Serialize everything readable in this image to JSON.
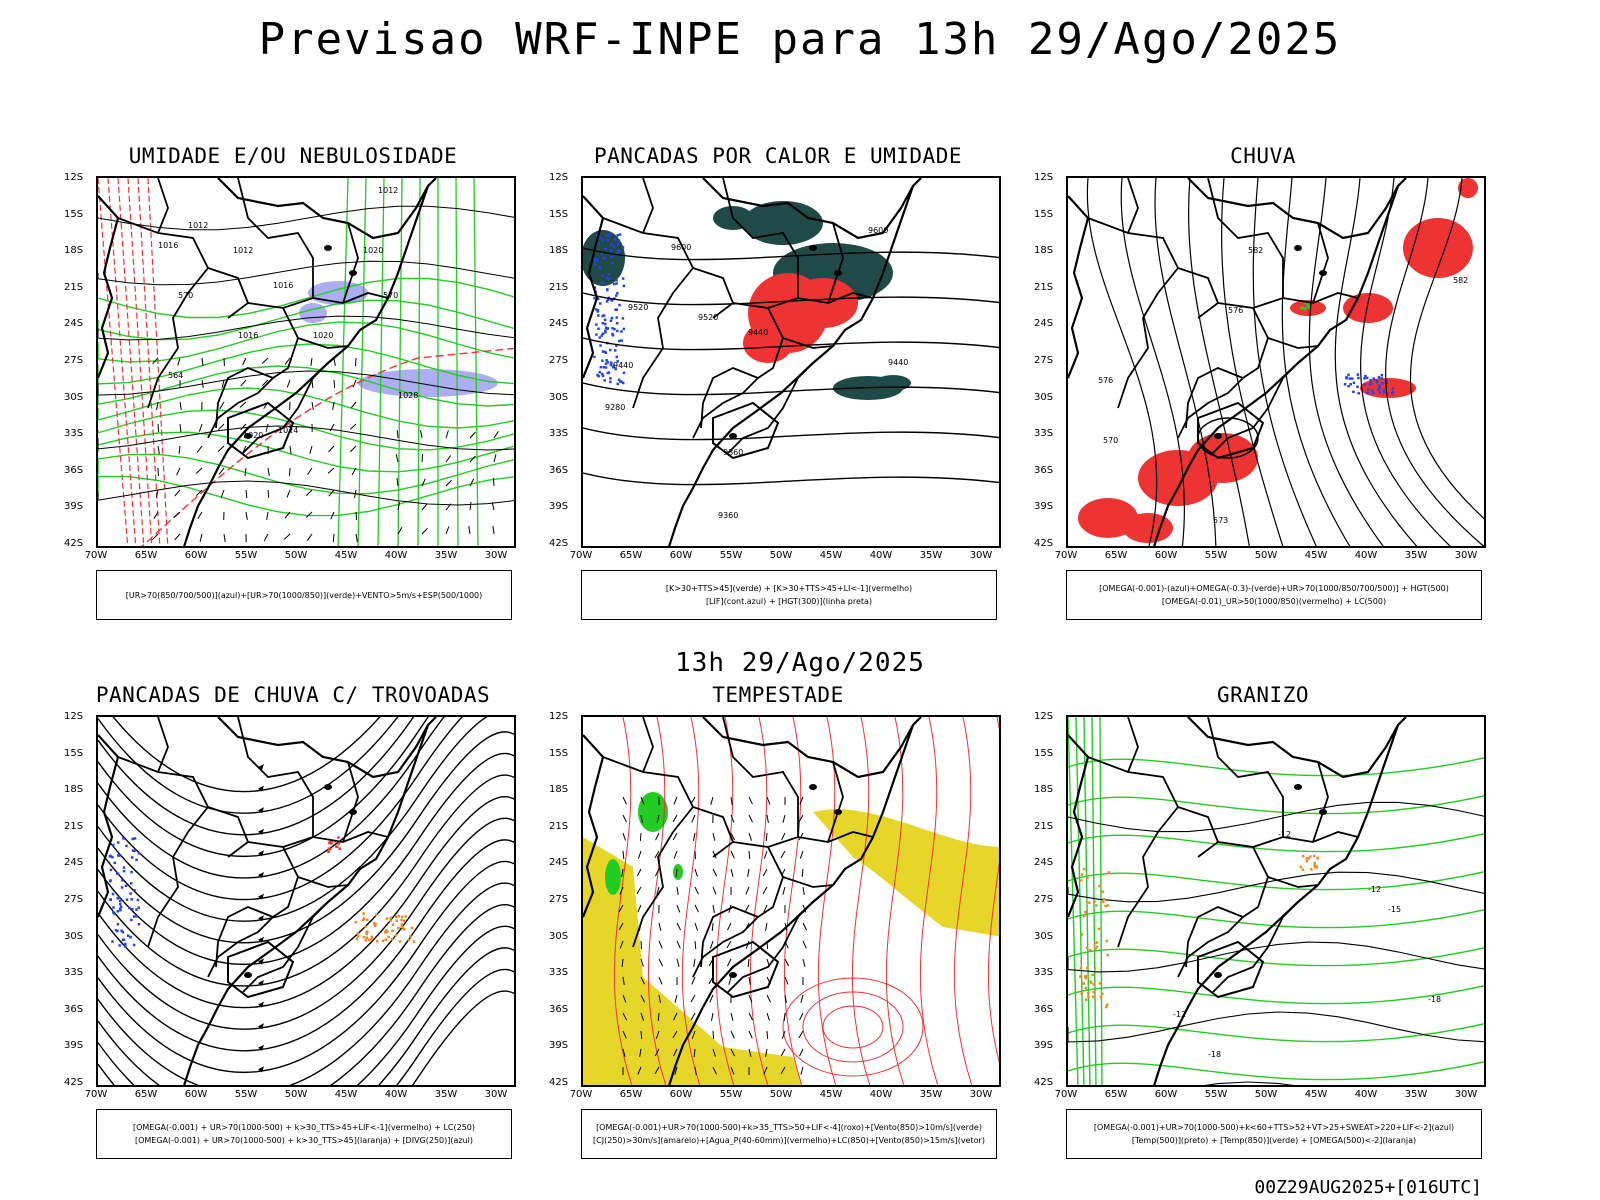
{
  "header": {
    "title": "Previsao WRF-INPE  para 13h 29/Ago/2025"
  },
  "middle": {
    "title": "13h 29/Ago/2025"
  },
  "footer": {
    "stamp": "00Z29AUG2025+[016UTC]"
  },
  "axes": {
    "lat_labels": [
      "12S",
      "15S",
      "18S",
      "21S",
      "24S",
      "27S",
      "30S",
      "33S",
      "36S",
      "39S",
      "42S"
    ],
    "lon_labels": [
      "70W",
      "65W",
      "60W",
      "55W",
      "50W",
      "45W",
      "40W",
      "35W",
      "30W"
    ]
  },
  "colors": {
    "green": "#22cc22",
    "red": "#ee3333",
    "blue": "#2244ee",
    "lavender": "#9999ee",
    "darkteal": "#1f4a47",
    "yellow": "#e6d62a",
    "orange": "#ee8822",
    "black": "#000000"
  },
  "panels": [
    {
      "title": "UMIDADE E/OU NEBULOSIDADE",
      "caption": [
        "[UR>70(850/700/500)](azul)+[UR>70(1000/850)](verde)+VENTO>5m/s+ESP(500/1000)"
      ],
      "contour_labels": [
        "1016",
        "1012",
        "1012",
        "1012",
        "1016",
        "1020",
        "1020",
        "1016",
        "1024",
        "1020",
        "1028",
        "570",
        "570",
        "564"
      ]
    },
    {
      "title": "PANCADAS POR CALOR E UMIDADE",
      "caption": [
        "[K>30+TTS>45](verde) + [K>30+TTS>45+LI<-1](vermelho)",
        "[LIF](cont.azul) + [HGT(300)](linha preta)"
      ],
      "contour_labels": [
        "9600",
        "9600",
        "9520",
        "9520",
        "9440",
        "9440",
        "9440",
        "9360",
        "9360",
        "9280"
      ]
    },
    {
      "title": "CHUVA",
      "caption": [
        "[OMEGA(-0.001)-(azul)+OMEGA(-0.3)-(verde)+UR>70(1000/850/700/500)] + HGT(500)",
        "[OMEGA(-0.01)_UR>50(1000/850)(vermelho) + LC(500)"
      ],
      "contour_labels": [
        "582",
        "582",
        "576",
        "576",
        "570",
        "573"
      ]
    },
    {
      "title": "PANCADAS DE CHUVA C/ TROVOADAS",
      "caption": [
        "[OMEGA(-0.001) + UR>70(1000-500) + k>30_TTS>45+LIF<-1](vermelho) + LC(250)",
        "[OMEGA(-0.001) + UR>70(1000-500) + k>30_TTS>45](laranja) + [DIVG(250)](azul)"
      ],
      "contour_labels": []
    },
    {
      "title": "TEMPESTADE",
      "caption": [
        "[OMEGA(-0.001)+UR>70(1000-500)+k>35_TTS>50+LIF<-4](roxo)+[Vento(850)>10m/s](verde)",
        "[CJ(250)>30m/s](amarelo)+[Agua_P(40-60mm)](vermelho)+LC(850)+[Vento(850)>15m/s](vetor)"
      ],
      "contour_labels": []
    },
    {
      "title": "GRANIZO",
      "caption": [
        "[OMEGA(-0.001)+UR>70(1000-500)+k<60+TTS>52+VT>25+SWEAT>220+LIF<-2](azul)",
        "[Temp(500)](preto) + [Temp(850)](verde) + [OMEGA(500)<-2](laranja)"
      ],
      "contour_labels": [
        "-12",
        "-12",
        "-15",
        "-18",
        "-12",
        "-18"
      ]
    }
  ]
}
